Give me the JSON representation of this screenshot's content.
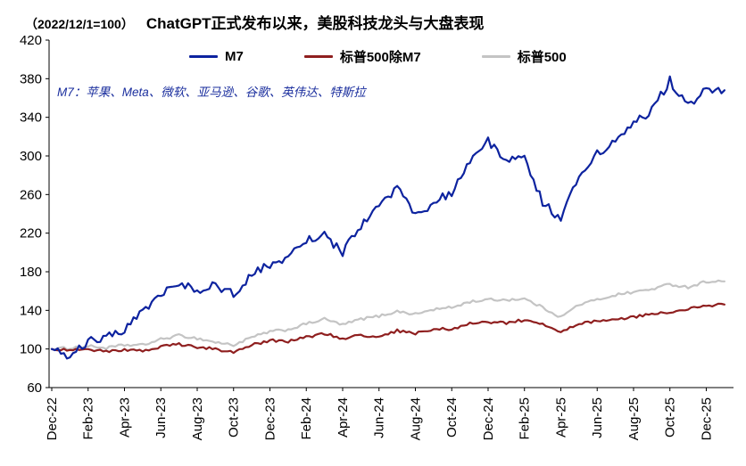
{
  "header": {
    "index_label": "（2022/12/1=100）",
    "title": "ChatGPT正式发布以来，美股科技龙头与大盘表现"
  },
  "annotation": "M7：苹果、Meta、微软、亚马逊、谷歌、英伟达、特斯拉",
  "chart_data": {
    "type": "line",
    "title": "ChatGPT正式发布以来，美股科技龙头与大盘表现",
    "subtitle": "（2022/12/1=100）",
    "x_unit": "months since 2022-12-01",
    "xlim": [
      0,
      37.4
    ],
    "ylim": [
      60,
      420
    ],
    "y_ticks": [
      60,
      100,
      140,
      180,
      220,
      260,
      300,
      340,
      380,
      420
    ],
    "x_tick_positions": [
      0,
      2,
      4,
      6,
      8,
      10,
      12,
      14,
      16,
      18,
      20,
      22,
      24,
      26,
      28,
      30,
      32,
      34,
      36
    ],
    "x_tick_labels": [
      "Dec-22",
      "Feb-23",
      "Apr-23",
      "Jun-23",
      "Aug-23",
      "Oct-23",
      "Dec-23",
      "Feb-24",
      "Apr-24",
      "Jun-24",
      "Aug-24",
      "Oct-24",
      "Dec-24",
      "Feb-25",
      "Apr-25",
      "Jun-25",
      "Aug-25",
      "Oct-25",
      "Dec-25"
    ],
    "grid": false,
    "legend_position": "top",
    "series": [
      {
        "name": "M7",
        "color": "#0d239f",
        "noise": 4.5,
        "values": [
          100,
          92,
          108,
          112,
          120,
          138,
          158,
          170,
          158,
          166,
          157,
          178,
          188,
          196,
          212,
          218,
          200,
          228,
          248,
          268,
          238,
          252,
          262,
          292,
          315,
          295,
          300,
          252,
          234,
          282,
          302,
          318,
          332,
          348,
          378,
          352,
          370,
          368
        ]
      },
      {
        "name": "标普500除M7",
        "color": "#8f1f1f",
        "noise": 1.4,
        "values": [
          100,
          99,
          100,
          97,
          99,
          98,
          102,
          105,
          102,
          100,
          96,
          104,
          109,
          108,
          112,
          116,
          111,
          114,
          113,
          119,
          116,
          120,
          121,
          126,
          128,
          127,
          130,
          126,
          117,
          126,
          129,
          131,
          133,
          136,
          138,
          141,
          145,
          146
        ]
      },
      {
        "name": "标普500",
        "color": "#c4c4c4",
        "noise": 1.4,
        "values": [
          100,
          101,
          103,
          101,
          104,
          104,
          110,
          114,
          111,
          107,
          104,
          112,
          118,
          120,
          126,
          131,
          125,
          131,
          134,
          139,
          136,
          141,
          143,
          149,
          151,
          151,
          152,
          143,
          133,
          146,
          151,
          156,
          159,
          162,
          167,
          164,
          170,
          170
        ]
      }
    ]
  }
}
